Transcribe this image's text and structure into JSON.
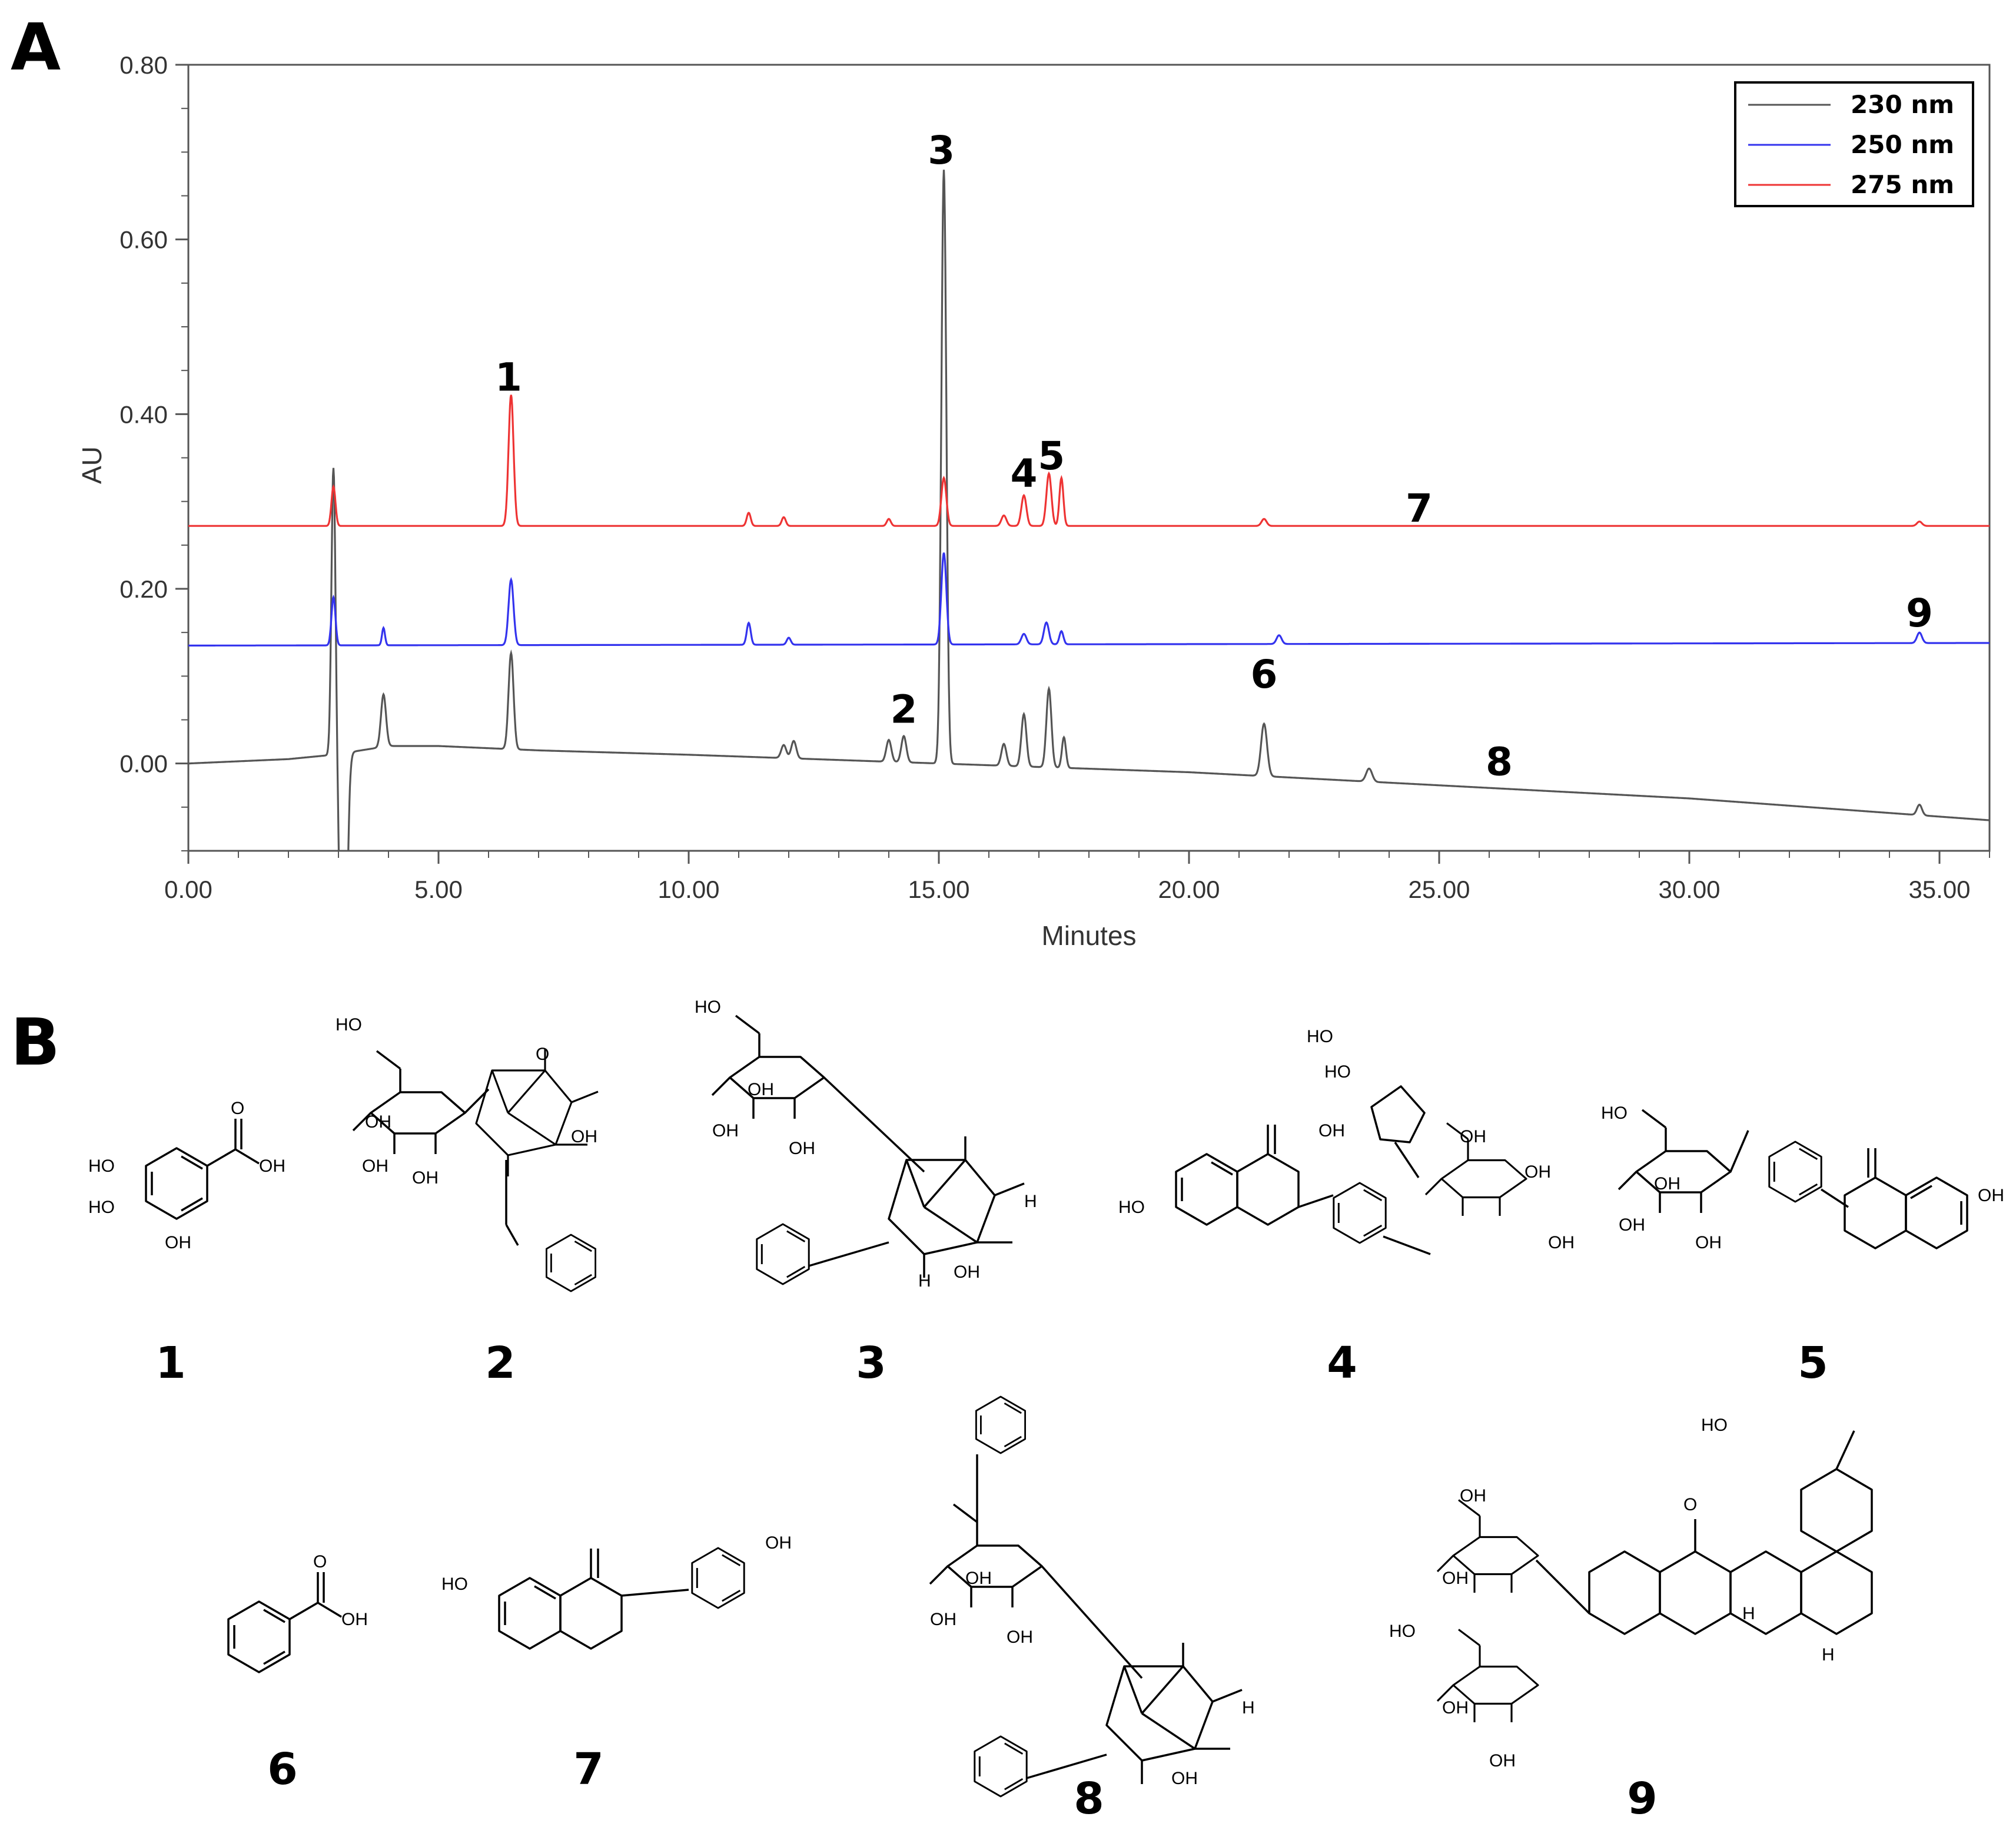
{
  "panels": {
    "a_label": "A",
    "b_label": "B"
  },
  "chart_data": {
    "type": "line",
    "xlabel": "Minutes",
    "ylabel": "AU",
    "xlim": [
      0,
      36
    ],
    "ylim": [
      -0.1,
      0.8
    ],
    "x_ticks": [
      "0.00",
      "5.00",
      "10.00",
      "15.00",
      "20.00",
      "25.00",
      "30.00",
      "35.00"
    ],
    "y_ticks": [
      "0.00",
      "0.20",
      "0.40",
      "0.60",
      "0.80"
    ],
    "legend": {
      "position": "top-right"
    },
    "colors": {
      "230 nm": "#555555",
      "250 nm": "#3333ee",
      "275 nm": "#ee3333"
    },
    "series": [
      {
        "name": "230 nm",
        "color": "#555555",
        "baseline": [
          [
            0,
            0.0
          ],
          [
            2.0,
            0.005
          ],
          [
            2.9,
            0.01
          ],
          [
            4.0,
            0.02
          ],
          [
            5.0,
            0.02
          ],
          [
            7.0,
            0.015
          ],
          [
            10.0,
            0.01
          ],
          [
            15.0,
            0.0
          ],
          [
            20.0,
            -0.01
          ],
          [
            25.0,
            -0.025
          ],
          [
            30.0,
            -0.04
          ],
          [
            36,
            -0.065
          ]
        ],
        "peaks": [
          {
            "rt": 2.9,
            "height": 0.33,
            "width": 0.04
          },
          {
            "rt": 3.1,
            "height": -0.42,
            "width": 0.06
          },
          {
            "rt": 3.9,
            "height": 0.06,
            "width": 0.05
          },
          {
            "rt": 6.45,
            "height": 0.11,
            "width": 0.05
          },
          {
            "rt": 11.9,
            "height": 0.015,
            "width": 0.05
          },
          {
            "rt": 12.1,
            "height": 0.02,
            "width": 0.05
          },
          {
            "rt": 14.0,
            "height": 0.025,
            "width": 0.05
          },
          {
            "rt": 14.3,
            "height": 0.03,
            "width": 0.05
          },
          {
            "rt": 15.1,
            "height": 0.68,
            "width": 0.05
          },
          {
            "rt": 16.3,
            "height": 0.025,
            "width": 0.05
          },
          {
            "rt": 16.7,
            "height": 0.06,
            "width": 0.05
          },
          {
            "rt": 17.2,
            "height": 0.09,
            "width": 0.05
          },
          {
            "rt": 17.5,
            "height": 0.035,
            "width": 0.04
          },
          {
            "rt": 21.5,
            "height": 0.06,
            "width": 0.06
          },
          {
            "rt": 23.6,
            "height": 0.015,
            "width": 0.06
          },
          {
            "rt": 34.6,
            "height": 0.012,
            "width": 0.05
          }
        ]
      },
      {
        "name": "250 nm",
        "color": "#3333ee",
        "baseline": [
          [
            0,
            0.135
          ],
          [
            36,
            0.138
          ]
        ],
        "peaks": [
          {
            "rt": 2.9,
            "height": 0.055,
            "width": 0.04
          },
          {
            "rt": 3.9,
            "height": 0.02,
            "width": 0.03
          },
          {
            "rt": 6.45,
            "height": 0.075,
            "width": 0.05
          },
          {
            "rt": 11.2,
            "height": 0.025,
            "width": 0.04
          },
          {
            "rt": 12.0,
            "height": 0.008,
            "width": 0.04
          },
          {
            "rt": 15.1,
            "height": 0.105,
            "width": 0.05
          },
          {
            "rt": 16.7,
            "height": 0.012,
            "width": 0.05
          },
          {
            "rt": 17.15,
            "height": 0.025,
            "width": 0.05
          },
          {
            "rt": 17.45,
            "height": 0.015,
            "width": 0.04
          },
          {
            "rt": 21.8,
            "height": 0.01,
            "width": 0.05
          },
          {
            "rt": 34.6,
            "height": 0.012,
            "width": 0.05
          }
        ]
      },
      {
        "name": "275 nm",
        "color": "#ee3333",
        "baseline": [
          [
            0,
            0.272
          ],
          [
            36,
            0.272
          ]
        ],
        "peaks": [
          {
            "rt": 2.9,
            "height": 0.045,
            "width": 0.04
          },
          {
            "rt": 6.45,
            "height": 0.15,
            "width": 0.05
          },
          {
            "rt": 11.2,
            "height": 0.015,
            "width": 0.04
          },
          {
            "rt": 11.9,
            "height": 0.01,
            "width": 0.04
          },
          {
            "rt": 14.0,
            "height": 0.008,
            "width": 0.04
          },
          {
            "rt": 15.1,
            "height": 0.055,
            "width": 0.05
          },
          {
            "rt": 16.3,
            "height": 0.012,
            "width": 0.05
          },
          {
            "rt": 16.7,
            "height": 0.035,
            "width": 0.05
          },
          {
            "rt": 17.2,
            "height": 0.06,
            "width": 0.05
          },
          {
            "rt": 17.45,
            "height": 0.055,
            "width": 0.04
          },
          {
            "rt": 21.5,
            "height": 0.008,
            "width": 0.05
          },
          {
            "rt": 34.6,
            "height": 0.005,
            "width": 0.05
          }
        ]
      }
    ],
    "annotations": [
      {
        "text": "1",
        "x": 6.4,
        "y": 0.42
      },
      {
        "text": "2",
        "x": 14.3,
        "y": 0.04
      },
      {
        "text": "3",
        "x": 15.05,
        "y": 0.68
      },
      {
        "text": "4",
        "x": 16.7,
        "y": 0.31
      },
      {
        "text": "5",
        "x": 17.25,
        "y": 0.33
      },
      {
        "text": "6",
        "x": 21.5,
        "y": 0.08
      },
      {
        "text": "7",
        "x": 24.6,
        "y": 0.27
      },
      {
        "text": "8",
        "x": 26.2,
        "y": -0.02
      },
      {
        "text": "9",
        "x": 34.6,
        "y": 0.15
      }
    ]
  },
  "compounds": [
    {
      "label": "1"
    },
    {
      "label": "2"
    },
    {
      "label": "3"
    },
    {
      "label": "4"
    },
    {
      "label": "5"
    },
    {
      "label": "6"
    },
    {
      "label": "7"
    },
    {
      "label": "8"
    },
    {
      "label": "9"
    }
  ],
  "atoms": {
    "oh": "OH",
    "ho": "HO",
    "o": "O",
    "h": "H",
    "hooc": "HO",
    "cooh": "OH"
  }
}
